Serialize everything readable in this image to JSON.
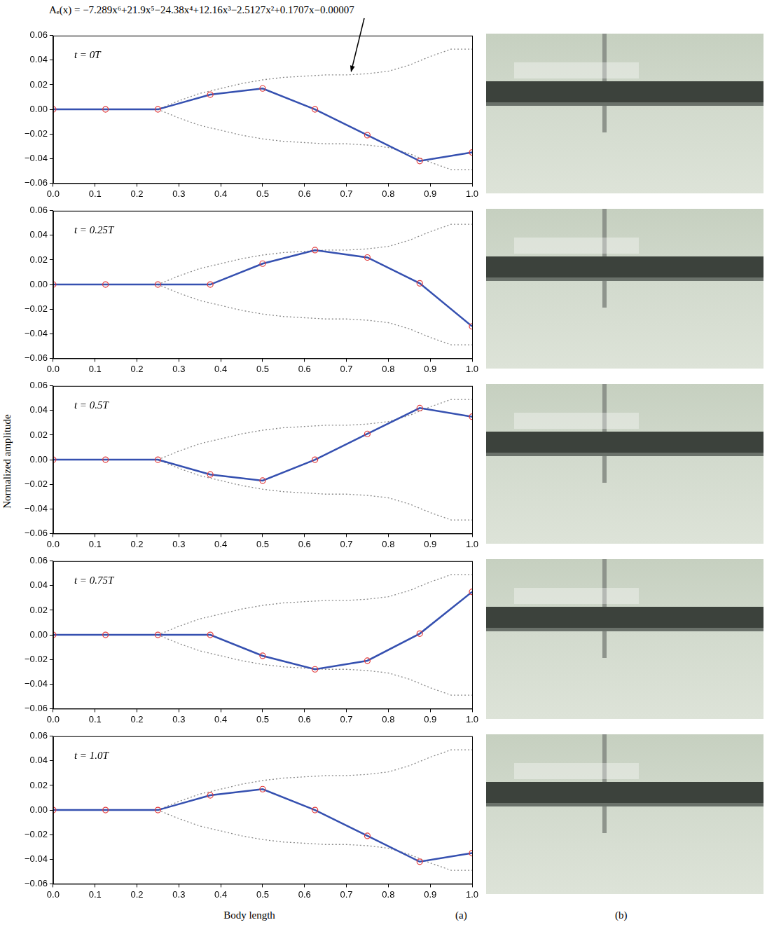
{
  "annotation": {
    "text": "Aₑ(x) = −7.289x⁶+21.9x⁵−24.38x⁴+12.16x³−2.5127x²+0.1707x−0.00007",
    "points_to": [
      0.71,
      0.029
    ]
  },
  "ylabel": "Normalized amplitude",
  "xlabel": "Body length",
  "panel_labels": [
    "(a)",
    "(b)"
  ],
  "chart_data": [
    {
      "type": "line",
      "title": "t = 0T",
      "grid": false,
      "x": [
        0.0,
        0.125,
        0.25,
        0.375,
        0.5,
        0.625,
        0.75,
        0.875,
        1.0
      ],
      "xlim": [
        0.0,
        1.0
      ],
      "xticks": [
        {
          "value": 0.0,
          "label": "0.0"
        },
        {
          "value": 0.1,
          "label": "0.1"
        },
        {
          "value": 0.2,
          "label": "0.2"
        },
        {
          "value": 0.3,
          "label": "0.3"
        },
        {
          "value": 0.4,
          "label": "0.4"
        },
        {
          "value": 0.5,
          "label": "0.5"
        },
        {
          "value": 0.6,
          "label": "0.6"
        },
        {
          "value": 0.7,
          "label": "0.7"
        },
        {
          "value": 0.8,
          "label": "0.8"
        },
        {
          "value": 0.9,
          "label": "0.9"
        },
        {
          "value": 1.0,
          "label": "1.0"
        }
      ],
      "ylim": [
        -0.06,
        0.06
      ],
      "yticks": [
        {
          "value": -0.06,
          "label": "−0.06"
        },
        {
          "value": -0.04,
          "label": "−0.04"
        },
        {
          "value": -0.02,
          "label": "−0.02"
        },
        {
          "value": 0.0,
          "label": "0.00"
        },
        {
          "value": 0.02,
          "label": "0.02"
        },
        {
          "value": 0.04,
          "label": "0.04"
        },
        {
          "value": 0.06,
          "label": "0.06"
        }
      ],
      "series": [
        {
          "color": "#3550b0",
          "marker": "circle",
          "line_style": "solid",
          "values": [
            0.0,
            0.0,
            0.0,
            0.012,
            0.017,
            0.0,
            -0.021,
            -0.042,
            -0.035
          ]
        },
        {
          "color": "#888888",
          "marker": "none",
          "line_style": "dotted",
          "x": [
            0.25,
            0.3,
            0.35,
            0.4,
            0.45,
            0.5,
            0.55,
            0.6,
            0.65,
            0.7,
            0.75,
            0.8,
            0.85,
            0.9,
            0.95,
            1.0
          ],
          "values": [
            0.0,
            0.007,
            0.013,
            0.017,
            0.021,
            0.024,
            0.026,
            0.027,
            0.028,
            0.028,
            0.029,
            0.031,
            0.036,
            0.043,
            0.049,
            0.049
          ]
        },
        {
          "color": "#888888",
          "marker": "none",
          "line_style": "dotted",
          "x": [
            0.25,
            0.3,
            0.35,
            0.4,
            0.45,
            0.5,
            0.55,
            0.6,
            0.65,
            0.7,
            0.75,
            0.8,
            0.85,
            0.9,
            0.95,
            1.0
          ],
          "values": [
            0.0,
            -0.007,
            -0.013,
            -0.017,
            -0.021,
            -0.024,
            -0.026,
            -0.027,
            -0.028,
            -0.028,
            -0.029,
            -0.031,
            -0.036,
            -0.043,
            -0.049,
            -0.049
          ]
        }
      ]
    },
    {
      "type": "line",
      "title": "t = 0.25T",
      "grid": false,
      "x": [
        0.0,
        0.125,
        0.25,
        0.375,
        0.5,
        0.625,
        0.75,
        0.875,
        1.0
      ],
      "xlim": [
        0.0,
        1.0
      ],
      "xticks": [
        {
          "value": 0.0,
          "label": "0.0"
        },
        {
          "value": 0.1,
          "label": "0.1"
        },
        {
          "value": 0.2,
          "label": "0.2"
        },
        {
          "value": 0.3,
          "label": "0.3"
        },
        {
          "value": 0.4,
          "label": "0.4"
        },
        {
          "value": 0.5,
          "label": "0.5"
        },
        {
          "value": 0.6,
          "label": "0.6"
        },
        {
          "value": 0.7,
          "label": "0.7"
        },
        {
          "value": 0.8,
          "label": "0.8"
        },
        {
          "value": 0.9,
          "label": "0.9"
        },
        {
          "value": 1.0,
          "label": "1.0"
        }
      ],
      "ylim": [
        -0.06,
        0.06
      ],
      "yticks": [
        {
          "value": -0.06,
          "label": "−0.06"
        },
        {
          "value": -0.04,
          "label": "−0.04"
        },
        {
          "value": -0.02,
          "label": "−0.02"
        },
        {
          "value": 0.0,
          "label": "0.00"
        },
        {
          "value": 0.02,
          "label": "0.02"
        },
        {
          "value": 0.04,
          "label": "0.04"
        },
        {
          "value": 0.06,
          "label": "0.06"
        }
      ],
      "series": [
        {
          "color": "#3550b0",
          "marker": "circle",
          "line_style": "solid",
          "values": [
            0.0,
            0.0,
            0.0,
            0.0,
            0.017,
            0.028,
            0.022,
            0.001,
            -0.034
          ]
        },
        {
          "color": "#888888",
          "marker": "none",
          "line_style": "dotted",
          "x": [
            0.25,
            0.3,
            0.35,
            0.4,
            0.45,
            0.5,
            0.55,
            0.6,
            0.65,
            0.7,
            0.75,
            0.8,
            0.85,
            0.9,
            0.95,
            1.0
          ],
          "values": [
            0.0,
            0.007,
            0.013,
            0.017,
            0.021,
            0.024,
            0.026,
            0.027,
            0.028,
            0.028,
            0.029,
            0.031,
            0.036,
            0.043,
            0.049,
            0.049
          ]
        },
        {
          "color": "#888888",
          "marker": "none",
          "line_style": "dotted",
          "x": [
            0.25,
            0.3,
            0.35,
            0.4,
            0.45,
            0.5,
            0.55,
            0.6,
            0.65,
            0.7,
            0.75,
            0.8,
            0.85,
            0.9,
            0.95,
            1.0
          ],
          "values": [
            0.0,
            -0.007,
            -0.013,
            -0.017,
            -0.021,
            -0.024,
            -0.026,
            -0.027,
            -0.028,
            -0.028,
            -0.029,
            -0.031,
            -0.036,
            -0.043,
            -0.049,
            -0.049
          ]
        }
      ]
    },
    {
      "type": "line",
      "title": "t = 0.5T",
      "grid": false,
      "x": [
        0.0,
        0.125,
        0.25,
        0.375,
        0.5,
        0.625,
        0.75,
        0.875,
        1.0
      ],
      "xlim": [
        0.0,
        1.0
      ],
      "xticks": [
        {
          "value": 0.0,
          "label": "0.0"
        },
        {
          "value": 0.1,
          "label": "0.1"
        },
        {
          "value": 0.2,
          "label": "0.2"
        },
        {
          "value": 0.3,
          "label": "0.3"
        },
        {
          "value": 0.4,
          "label": "0.4"
        },
        {
          "value": 0.5,
          "label": "0.5"
        },
        {
          "value": 0.6,
          "label": "0.6"
        },
        {
          "value": 0.7,
          "label": "0.7"
        },
        {
          "value": 0.8,
          "label": "0.8"
        },
        {
          "value": 0.9,
          "label": "0.9"
        },
        {
          "value": 1.0,
          "label": "1.0"
        }
      ],
      "ylim": [
        -0.06,
        0.06
      ],
      "yticks": [
        {
          "value": -0.06,
          "label": "−0.06"
        },
        {
          "value": -0.04,
          "label": "−0.04"
        },
        {
          "value": -0.02,
          "label": "−0.02"
        },
        {
          "value": 0.0,
          "label": "0.00"
        },
        {
          "value": 0.02,
          "label": "0.02"
        },
        {
          "value": 0.04,
          "label": "0.04"
        },
        {
          "value": 0.06,
          "label": "0.06"
        }
      ],
      "series": [
        {
          "color": "#3550b0",
          "marker": "circle",
          "line_style": "solid",
          "values": [
            0.0,
            0.0,
            0.0,
            -0.012,
            -0.017,
            0.0,
            0.021,
            0.042,
            0.035
          ]
        },
        {
          "color": "#888888",
          "marker": "none",
          "line_style": "dotted",
          "x": [
            0.25,
            0.3,
            0.35,
            0.4,
            0.45,
            0.5,
            0.55,
            0.6,
            0.65,
            0.7,
            0.75,
            0.8,
            0.85,
            0.9,
            0.95,
            1.0
          ],
          "values": [
            0.0,
            0.007,
            0.013,
            0.017,
            0.021,
            0.024,
            0.026,
            0.027,
            0.028,
            0.028,
            0.029,
            0.031,
            0.036,
            0.043,
            0.049,
            0.049
          ]
        },
        {
          "color": "#888888",
          "marker": "none",
          "line_style": "dotted",
          "x": [
            0.25,
            0.3,
            0.35,
            0.4,
            0.45,
            0.5,
            0.55,
            0.6,
            0.65,
            0.7,
            0.75,
            0.8,
            0.85,
            0.9,
            0.95,
            1.0
          ],
          "values": [
            0.0,
            -0.007,
            -0.013,
            -0.017,
            -0.021,
            -0.024,
            -0.026,
            -0.027,
            -0.028,
            -0.028,
            -0.029,
            -0.031,
            -0.036,
            -0.043,
            -0.049,
            -0.049
          ]
        }
      ]
    },
    {
      "type": "line",
      "title": "t = 0.75T",
      "grid": false,
      "x": [
        0.0,
        0.125,
        0.25,
        0.375,
        0.5,
        0.625,
        0.75,
        0.875,
        1.0
      ],
      "xlim": [
        0.0,
        1.0
      ],
      "xticks": [
        {
          "value": 0.0,
          "label": "0.0"
        },
        {
          "value": 0.1,
          "label": "0.1"
        },
        {
          "value": 0.2,
          "label": "0.2"
        },
        {
          "value": 0.3,
          "label": "0.3"
        },
        {
          "value": 0.4,
          "label": "0.4"
        },
        {
          "value": 0.5,
          "label": "0.5"
        },
        {
          "value": 0.6,
          "label": "0.6"
        },
        {
          "value": 0.7,
          "label": "0.7"
        },
        {
          "value": 0.8,
          "label": "0.8"
        },
        {
          "value": 0.9,
          "label": "0.9"
        },
        {
          "value": 1.0,
          "label": "1.0"
        }
      ],
      "ylim": [
        -0.06,
        0.06
      ],
      "yticks": [
        {
          "value": -0.06,
          "label": "−0.06"
        },
        {
          "value": -0.04,
          "label": "−0.04"
        },
        {
          "value": -0.02,
          "label": "−0.02"
        },
        {
          "value": 0.0,
          "label": "0.00"
        },
        {
          "value": 0.02,
          "label": "0.02"
        },
        {
          "value": 0.04,
          "label": "0.04"
        },
        {
          "value": 0.06,
          "label": "0.06"
        }
      ],
      "series": [
        {
          "color": "#3550b0",
          "marker": "circle",
          "line_style": "solid",
          "values": [
            0.0,
            0.0,
            0.0,
            0.0,
            -0.017,
            -0.028,
            -0.021,
            0.001,
            0.035
          ]
        },
        {
          "color": "#888888",
          "marker": "none",
          "line_style": "dotted",
          "x": [
            0.25,
            0.3,
            0.35,
            0.4,
            0.45,
            0.5,
            0.55,
            0.6,
            0.65,
            0.7,
            0.75,
            0.8,
            0.85,
            0.9,
            0.95,
            1.0
          ],
          "values": [
            0.0,
            0.007,
            0.013,
            0.017,
            0.021,
            0.024,
            0.026,
            0.027,
            0.028,
            0.028,
            0.029,
            0.031,
            0.036,
            0.043,
            0.049,
            0.049
          ]
        },
        {
          "color": "#888888",
          "marker": "none",
          "line_style": "dotted",
          "x": [
            0.25,
            0.3,
            0.35,
            0.4,
            0.45,
            0.5,
            0.55,
            0.6,
            0.65,
            0.7,
            0.75,
            0.8,
            0.85,
            0.9,
            0.95,
            1.0
          ],
          "values": [
            0.0,
            -0.007,
            -0.013,
            -0.017,
            -0.021,
            -0.024,
            -0.026,
            -0.027,
            -0.028,
            -0.028,
            -0.029,
            -0.031,
            -0.036,
            -0.043,
            -0.049,
            -0.049
          ]
        }
      ]
    },
    {
      "type": "line",
      "title": "t = 1.0T",
      "grid": false,
      "x": [
        0.0,
        0.125,
        0.25,
        0.375,
        0.5,
        0.625,
        0.75,
        0.875,
        1.0
      ],
      "xlim": [
        0.0,
        1.0
      ],
      "xticks": [
        {
          "value": 0.0,
          "label": "0.0"
        },
        {
          "value": 0.1,
          "label": "0.1"
        },
        {
          "value": 0.2,
          "label": "0.2"
        },
        {
          "value": 0.3,
          "label": "0.3"
        },
        {
          "value": 0.4,
          "label": "0.4"
        },
        {
          "value": 0.5,
          "label": "0.5"
        },
        {
          "value": 0.6,
          "label": "0.6"
        },
        {
          "value": 0.7,
          "label": "0.7"
        },
        {
          "value": 0.8,
          "label": "0.8"
        },
        {
          "value": 0.9,
          "label": "0.9"
        },
        {
          "value": 1.0,
          "label": "1.0"
        }
      ],
      "ylim": [
        -0.06,
        0.06
      ],
      "yticks": [
        {
          "value": -0.06,
          "label": "−0.06"
        },
        {
          "value": -0.04,
          "label": "−0.04"
        },
        {
          "value": -0.02,
          "label": "−0.02"
        },
        {
          "value": 0.0,
          "label": "0.00"
        },
        {
          "value": 0.02,
          "label": "0.02"
        },
        {
          "value": 0.04,
          "label": "0.04"
        },
        {
          "value": 0.06,
          "label": "0.06"
        }
      ],
      "series": [
        {
          "color": "#3550b0",
          "marker": "circle",
          "line_style": "solid",
          "values": [
            0.0,
            0.0,
            0.0,
            0.012,
            0.017,
            0.0,
            -0.021,
            -0.042,
            -0.035
          ]
        },
        {
          "color": "#888888",
          "marker": "none",
          "line_style": "dotted",
          "x": [
            0.25,
            0.3,
            0.35,
            0.4,
            0.45,
            0.5,
            0.55,
            0.6,
            0.65,
            0.7,
            0.75,
            0.8,
            0.85,
            0.9,
            0.95,
            1.0
          ],
          "values": [
            0.0,
            0.007,
            0.013,
            0.017,
            0.021,
            0.024,
            0.026,
            0.027,
            0.028,
            0.028,
            0.029,
            0.031,
            0.036,
            0.043,
            0.049,
            0.049
          ]
        },
        {
          "color": "#888888",
          "marker": "none",
          "line_style": "dotted",
          "x": [
            0.25,
            0.3,
            0.35,
            0.4,
            0.45,
            0.5,
            0.55,
            0.6,
            0.65,
            0.7,
            0.75,
            0.8,
            0.85,
            0.9,
            0.95,
            1.0
          ],
          "values": [
            0.0,
            -0.007,
            -0.013,
            -0.017,
            -0.021,
            -0.024,
            -0.026,
            -0.027,
            -0.028,
            -0.028,
            -0.029,
            -0.031,
            -0.036,
            -0.043,
            -0.049,
            -0.049
          ]
        }
      ]
    }
  ]
}
